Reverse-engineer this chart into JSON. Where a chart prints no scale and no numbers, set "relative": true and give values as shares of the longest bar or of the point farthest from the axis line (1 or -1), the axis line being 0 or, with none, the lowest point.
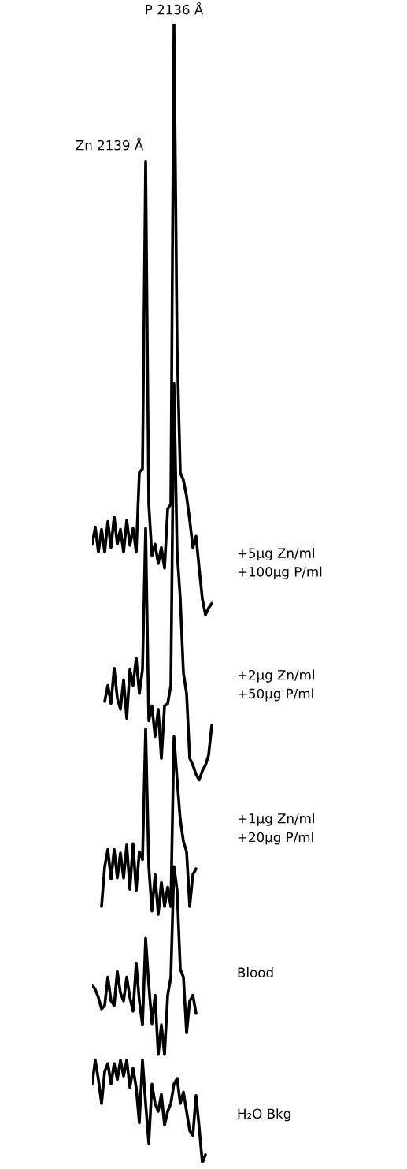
{
  "chart_data": {
    "type": "line",
    "relative": true,
    "categories": [
      null,
      null,
      null,
      null,
      null,
      null,
      null,
      null,
      null,
      null,
      null,
      null,
      null,
      null,
      null,
      null,
      null,
      null,
      null,
      null,
      null,
      null,
      null,
      null,
      null,
      null,
      null,
      null,
      null,
      null,
      null,
      null,
      null,
      null,
      null,
      null,
      null,
      null,
      null,
      null
    ],
    "annotations": [
      "Zn 2139 Å",
      "P 2136 Å"
    ],
    "series": [
      {
        "name": "+5µg Zn/ml\n+100µg P/ml",
        "color": "#000000",
        "values": [
          0.543,
          0.558,
          0.536,
          0.556,
          0.536,
          0.563,
          0.54,
          0.567,
          0.543,
          0.556,
          0.536,
          0.564,
          0.542,
          0.557,
          0.536,
          0.606,
          0.609,
          0.879,
          0.578,
          0.533,
          0.543,
          0.526,
          0.54,
          0.522,
          0.574,
          0.578,
          1.0,
          0.716,
          0.606,
          0.599,
          0.585,
          0.564,
          0.54,
          0.55,
          0.522,
          0.495,
          0.481,
          0.487,
          0.491,
          null
        ]
      },
      {
        "name": "+2µg Zn/ml\n+50µg P/ml",
        "color": "#000000",
        "values": [
          null,
          null,
          null,
          null,
          0.405,
          0.419,
          0.403,
          0.434,
          0.408,
          0.398,
          0.424,
          0.39,
          0.433,
          0.419,
          0.443,
          0.412,
          0.433,
          0.557,
          0.388,
          0.401,
          0.374,
          0.398,
          0.355,
          0.401,
          0.403,
          0.419,
          0.684,
          0.536,
          0.495,
          0.43,
          0.412,
          0.355,
          0.349,
          0.341,
          0.336,
          0.344,
          0.349,
          0.358,
          0.384,
          null
        ]
      },
      {
        "name": "+1µg Zn/ml\n+20µg P/ml",
        "color": "#000000",
        "values": [
          null,
          null,
          null,
          0.225,
          0.26,
          0.275,
          0.249,
          0.275,
          0.25,
          0.272,
          0.25,
          0.279,
          0.24,
          0.28,
          0.239,
          0.273,
          0.266,
          0.381,
          0.26,
          0.221,
          0.253,
          0.218,
          0.246,
          0.225,
          0.242,
          0.225,
          0.374,
          0.336,
          0.301,
          0.282,
          0.273,
          0.225,
          0.253,
          0.258,
          null,
          null,
          null,
          null,
          null,
          null
        ]
      },
      {
        "name": "Blood",
        "color": "#000000",
        "values": [
          0.156,
          0.152,
          0.145,
          0.135,
          0.138,
          0.163,
          0.142,
          0.138,
          0.168,
          0.149,
          0.142,
          0.163,
          0.145,
          0.133,
          0.175,
          0.142,
          0.121,
          0.197,
          0.156,
          0.122,
          0.147,
          0.095,
          0.121,
          0.095,
          0.147,
          0.163,
          0.26,
          0.239,
          0.17,
          0.163,
          0.114,
          0.142,
          0.147,
          0.131,
          null,
          null,
          null,
          null,
          null,
          null
        ]
      },
      {
        "name": "H₂O Bkg",
        "color": "#000000",
        "values": [
          0.069,
          0.09,
          0.073,
          0.052,
          0.08,
          0.087,
          0.069,
          0.087,
          0.073,
          0.09,
          0.076,
          0.09,
          0.066,
          0.083,
          0.066,
          0.035,
          0.09,
          0.052,
          0.017,
          0.069,
          0.052,
          0.045,
          0.06,
          0.033,
          0.045,
          0.052,
          0.069,
          0.074,
          0.052,
          0.062,
          0.045,
          0.028,
          0.024,
          0.059,
          0.031,
          0,
          0.007,
          null,
          null,
          null
        ]
      }
    ]
  }
}
